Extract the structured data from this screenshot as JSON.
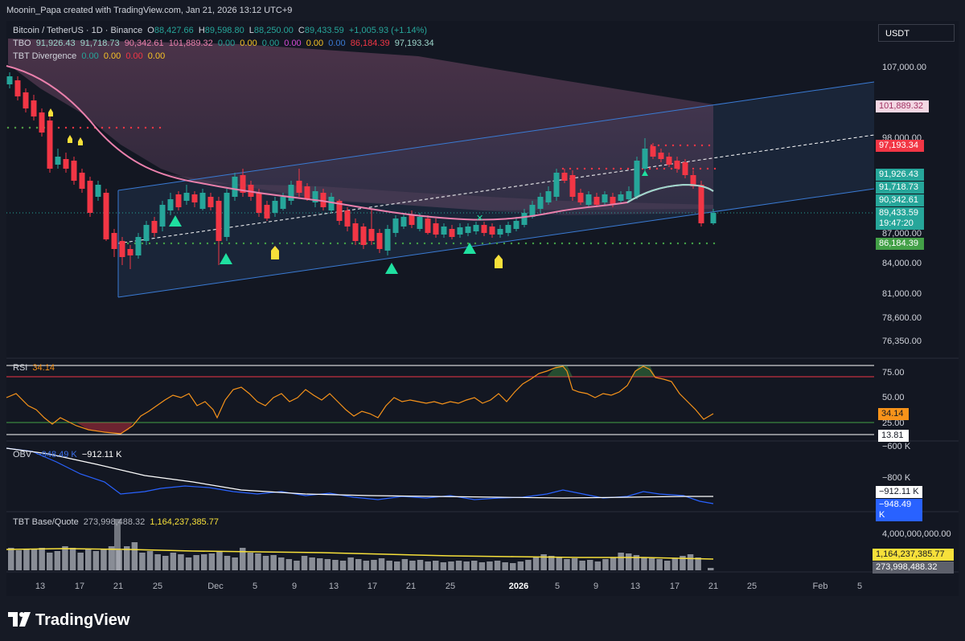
{
  "header": {
    "text": "Moonin_Papa created with TradingView.com, Jan 21, 2026 13:12 UTC+9"
  },
  "symbol": {
    "name": "Bitcoin / TetherUS · 1D · Binance",
    "o_label": "O",
    "o": "88,427.66",
    "h_label": "H",
    "h": "89,598.80",
    "l_label": "L",
    "l": "88,250.00",
    "c_label": "C",
    "c": "89,433.59",
    "change": "+1,005.93 (+1.14%)"
  },
  "tbo": {
    "label": "TBO",
    "values": [
      "91,926.43",
      "91,718.73",
      "90,342.61",
      "101,889.32",
      "0.00",
      "0.00",
      "0.00",
      "0.00",
      "0.00",
      "0.00",
      "86,184.39",
      "97,193.34"
    ]
  },
  "divergence": {
    "label": "TBT Divergence",
    "values": [
      "0.00",
      "0.00",
      "0.00",
      "0.00"
    ]
  },
  "currency": "USDT",
  "price_axis": [
    "107,000.00",
    "98,000.00",
    "87,000.00",
    "84,000.00",
    "81,000.00",
    "78,600.00",
    "76,350.00"
  ],
  "price_tags": {
    "t1": "101,889.32",
    "t2": "97,193.34",
    "t3": "91,926.43",
    "t4": "91,718.73",
    "t5": "90,342.61",
    "t6": "89,433.59",
    "countdown": "19:47:20",
    "t7": "86,184.39"
  },
  "rsi": {
    "label": "RSI",
    "value": "34.14",
    "axis": [
      "75.00",
      "50.00",
      "25.00"
    ],
    "tag": "34.14",
    "tag2": "13.81"
  },
  "obv": {
    "label": "OBV",
    "v1": "−948.49 K",
    "v2": "−912.11 K",
    "axis": [
      "−600 K",
      "−800 K"
    ],
    "tag1": "−912.11 K",
    "tag2": "−948.49 K"
  },
  "basequote": {
    "label": "TBT Base/Quote",
    "v1": "273,998,488.32",
    "v2": "1,164,237,385.77",
    "axis": [
      "4,000,000,000.00"
    ],
    "tag1": "1,164,237,385.77",
    "tag2": "273,998,488.32"
  },
  "dates": [
    "13",
    "17",
    "21",
    "25",
    "Dec",
    "5",
    "9",
    "13",
    "17",
    "21",
    "25",
    "2026",
    "5",
    "9",
    "13",
    "17",
    "21",
    "25",
    "Feb",
    "5"
  ],
  "logo": "TradingView",
  "colors": {
    "up": "#26a69a",
    "down": "#f23645",
    "pink": "#ea80ac",
    "channel": "#3a7bd5",
    "rsi": "#f7931a"
  }
}
